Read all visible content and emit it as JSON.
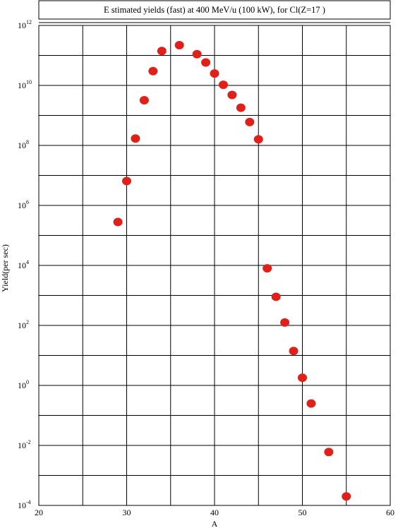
{
  "chart_data": {
    "type": "scatter",
    "title": "E stimated yields (fast) at 400 MeV/u (100 kW), for Cl(Z=17 )",
    "xlabel": "A",
    "ylabel": "Yield(per sec)",
    "xlim": [
      20,
      60
    ],
    "ylim_exponent": [
      -4,
      12
    ],
    "y_scale": "log",
    "grid": true,
    "x_ticks": [
      "20",
      "30",
      "40",
      "50",
      "60"
    ],
    "y_ticks": [
      {
        "value": 0.0001,
        "base": "10",
        "exp": "-4"
      },
      {
        "value": 0.01,
        "base": "10",
        "exp": "-2"
      },
      {
        "value": 1,
        "base": "10",
        "exp": "0"
      },
      {
        "value": 100.0,
        "base": "10",
        "exp": "2"
      },
      {
        "value": 10000.0,
        "base": "10",
        "exp": "4"
      },
      {
        "value": 1000000.0,
        "base": "10",
        "exp": "6"
      },
      {
        "value": 100000000.0,
        "base": "10",
        "exp": "8"
      },
      {
        "value": 10000000000.0,
        "base": "10",
        "exp": "10"
      },
      {
        "value": 1000000000000.0,
        "base": "10",
        "exp": "12"
      }
    ],
    "marker_color": "#e0211a",
    "series": [
      {
        "points": [
          {
            "x": 29,
            "y": 280000.0
          },
          {
            "x": 30,
            "y": 6500000.0
          },
          {
            "x": 31,
            "y": 170000000.0
          },
          {
            "x": 32,
            "y": 3200000000.0
          },
          {
            "x": 33,
            "y": 30000000000.0
          },
          {
            "x": 34,
            "y": 140000000000.0
          },
          {
            "x": 36,
            "y": 220000000000.0
          },
          {
            "x": 38,
            "y": 110000000000.0
          },
          {
            "x": 39,
            "y": 58000000000.0
          },
          {
            "x": 40,
            "y": 25000000000.0
          },
          {
            "x": 41,
            "y": 10500000000.0
          },
          {
            "x": 42,
            "y": 4800000000.0
          },
          {
            "x": 43,
            "y": 1800000000.0
          },
          {
            "x": 44,
            "y": 600000000.0
          },
          {
            "x": 45,
            "y": 160000000.0
          },
          {
            "x": 46,
            "y": 8000.0
          },
          {
            "x": 47,
            "y": 900.0
          },
          {
            "x": 48,
            "y": 125.0
          },
          {
            "x": 49,
            "y": 14.0
          },
          {
            "x": 50,
            "y": 1.8
          },
          {
            "x": 51,
            "y": 0.25
          },
          {
            "x": 53,
            "y": 0.006
          },
          {
            "x": 55,
            "y": 0.0002
          }
        ]
      }
    ]
  }
}
